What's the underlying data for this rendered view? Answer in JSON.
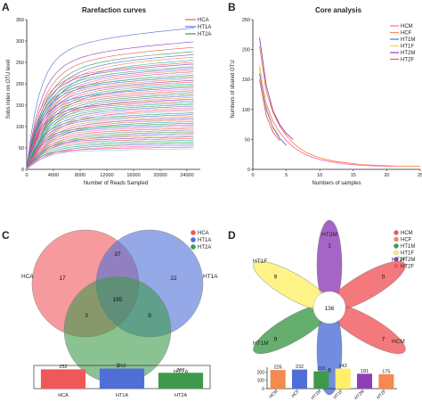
{
  "panels": {
    "a": "A",
    "b": "B",
    "c": "C",
    "d": "D"
  },
  "colors": {
    "red": "#f0575b",
    "blue": "#4f6fd8",
    "green": "#3e9a4a",
    "orange": "#f58a4e",
    "yellow": "#fff06a",
    "purple": "#8e3fb8",
    "pink": "#ff69b4",
    "teal": "#20b2aa",
    "lightblue": "#87cefa",
    "gray": "#888888"
  },
  "chart_data": [
    {
      "id": "rarefaction",
      "type": "line",
      "title": "Rarefaction curves",
      "xlabel": "Number of Reads Sampled",
      "ylabel": "Sobs index on OTU level",
      "xlim": [
        0,
        26000
      ],
      "ylim": [
        0,
        350
      ],
      "xticks": [
        "0",
        "4000",
        "8000",
        "12000",
        "16000",
        "20000",
        "24000"
      ],
      "yticks": [
        "0",
        "50",
        "100",
        "150",
        "200",
        "250",
        "300",
        "350"
      ],
      "legend": [
        "HCA",
        "HT1A",
        "HT2A"
      ],
      "legend_colors": [
        "#f0575b",
        "#4f6fd8",
        "#3e9a4a"
      ],
      "legend_position": "top-right",
      "curve_max_x": 25000,
      "series_final_values": [
        330,
        298,
        285,
        275,
        268,
        262,
        255,
        250,
        246,
        240,
        236,
        232,
        228,
        224,
        220,
        216,
        212,
        208,
        204,
        200,
        196,
        192,
        188,
        184,
        180,
        176,
        172,
        168,
        164,
        160,
        156,
        152,
        148,
        144,
        140,
        136,
        132,
        128,
        124,
        120,
        116,
        112,
        108,
        104,
        100,
        96,
        92,
        88,
        84,
        80,
        76,
        72,
        68,
        64,
        60,
        56,
        52,
        48
      ],
      "series_colors": [
        "#4f6fd8",
        "#8e3fb8",
        "#f0575b",
        "#3e9a4a",
        "#4f6fd8",
        "#f58a4e",
        "#20b2aa",
        "#f0575b",
        "#8e3fb8",
        "#3e9a4a",
        "#4f6fd8",
        "#ff69b4",
        "#f0575b",
        "#87cefa",
        "#3e9a4a",
        "#4f6fd8",
        "#f58a4e",
        "#8e3fb8",
        "#f0575b",
        "#20b2aa",
        "#3e9a4a",
        "#4f6fd8",
        "#ff69b4",
        "#f0575b",
        "#888888",
        "#3e9a4a",
        "#4f6fd8",
        "#f58a4e",
        "#8e3fb8",
        "#f0575b",
        "#20b2aa",
        "#3e9a4a",
        "#4f6fd8",
        "#ff69b4",
        "#f0575b",
        "#87cefa",
        "#3e9a4a",
        "#4f6fd8",
        "#f58a4e",
        "#8e3fb8",
        "#f0575b",
        "#20b2aa",
        "#3e9a4a",
        "#4f6fd8",
        "#ff69b4",
        "#f0575b",
        "#888888",
        "#3e9a4a",
        "#4f6fd8",
        "#f58a4e",
        "#8e3fb8",
        "#f0575b",
        "#20b2aa",
        "#3e9a4a",
        "#4f6fd8",
        "#ff69b4",
        "#f0575b",
        "#87cefa"
      ]
    },
    {
      "id": "core",
      "type": "line",
      "title": "Core analysis",
      "xlabel": "Numbers of samples",
      "ylabel": "Numbers of shared OTU",
      "xlim": [
        0,
        25
      ],
      "ylim": [
        0,
        250
      ],
      "xticks": [
        "0",
        "5",
        "10",
        "15",
        "20",
        "25"
      ],
      "yticks": [
        "0",
        "50",
        "100",
        "150",
        "200",
        "250"
      ],
      "legend": [
        "HCM",
        "HCF",
        "HT1M",
        "HT1F",
        "HT2M",
        "HT2F"
      ],
      "legend_colors": [
        "#ff69b4",
        "#f58a4e",
        "#4f6fd8",
        "#e8d84a",
        "#8e3fb8",
        "#f0575b"
      ],
      "legend_position": "top-right",
      "series": [
        {
          "name": "HCM",
          "x": [
            1,
            2,
            3,
            4,
            5,
            6,
            7,
            8,
            10,
            12,
            14,
            16,
            18,
            20,
            21
          ],
          "values": [
            170,
            110,
            80,
            62,
            48,
            38,
            30,
            24,
            16,
            12,
            9,
            7,
            6,
            5,
            5
          ]
        },
        {
          "name": "HCF",
          "x": [
            1,
            2,
            3,
            4,
            5,
            6,
            7,
            8,
            10,
            12,
            14,
            16,
            18,
            20,
            22,
            24,
            25
          ],
          "values": [
            205,
            130,
            95,
            72,
            56,
            44,
            35,
            28,
            19,
            14,
            11,
            8,
            7,
            6,
            5,
            5,
            5
          ]
        },
        {
          "name": "HT1M",
          "x": [
            1,
            2,
            3,
            4,
            5
          ],
          "values": [
            160,
            100,
            70,
            52,
            40
          ]
        },
        {
          "name": "HT1F",
          "x": [
            1,
            2,
            3,
            4
          ],
          "values": [
            175,
            105,
            72,
            55
          ]
        },
        {
          "name": "HT2M",
          "x": [
            1,
            2,
            3,
            4,
            5,
            6
          ],
          "values": [
            220,
            140,
            98,
            75,
            60,
            50
          ]
        },
        {
          "name": "HT2F",
          "x": [
            1,
            2,
            3,
            4
          ],
          "values": [
            150,
            90,
            62,
            48
          ]
        }
      ]
    },
    {
      "id": "venn3",
      "type": "venn",
      "sets": [
        "HCA",
        "HT1A",
        "HT2A"
      ],
      "set_colors": [
        "#f0575b",
        "#4f6fd8",
        "#3e9a4a"
      ],
      "regions": {
        "HCA_only": 17,
        "HT1A_only": 22,
        "HT2A_only": 1,
        "HCA_HT1A": 37,
        "HCA_HT2A": 3,
        "HT1A_HT2A": 8,
        "all": 195
      },
      "legend_position": "top-right"
    },
    {
      "id": "totals3",
      "type": "bar",
      "categories": [
        "HCA",
        "HT1A",
        "HT2A"
      ],
      "values": [
        252,
        262,
        207
      ],
      "colors": [
        "#f0575b",
        "#4f6fd8",
        "#3e9a4a"
      ]
    },
    {
      "id": "flower",
      "type": "venn",
      "core_value": 136,
      "petals": [
        {
          "name": "HT2M",
          "value": 1,
          "color": "#8e3fb8"
        },
        {
          "name": "HT2F",
          "value": 0,
          "color": "#f0575b"
        },
        {
          "name": "HCM",
          "value": 7,
          "color": "#f0575b"
        },
        {
          "name": "HCF",
          "value": 6,
          "color": "#4f6fd8"
        },
        {
          "name": "HT1M",
          "value": 9,
          "color": "#3e9a4a"
        },
        {
          "name": "HT1F",
          "value": 9,
          "color": "#fff06a"
        }
      ],
      "legend": [
        "HCM",
        "HCF",
        "HT1M",
        "HT1F",
        "HT2M",
        "HT2F"
      ],
      "legend_colors": [
        "#f0575b",
        "#f58a4e",
        "#3e9a4a",
        "#fff06a",
        "#8e3fb8",
        "#f0575b"
      ],
      "legend_position": "top-right"
    },
    {
      "id": "totals6",
      "type": "bar",
      "categories": [
        "HCM",
        "HCF",
        "HT1M",
        "HT1F",
        "HT2M",
        "HT2F"
      ],
      "values": [
        226,
        232,
        210,
        243,
        181,
        175
      ],
      "colors": [
        "#f58a4e",
        "#4f6fd8",
        "#3e9a4a",
        "#fff06a",
        "#8e3fb8",
        "#f58a4e"
      ],
      "yticks": [
        "0",
        "100",
        "200"
      ],
      "ylim": [
        0,
        260
      ]
    }
  ]
}
